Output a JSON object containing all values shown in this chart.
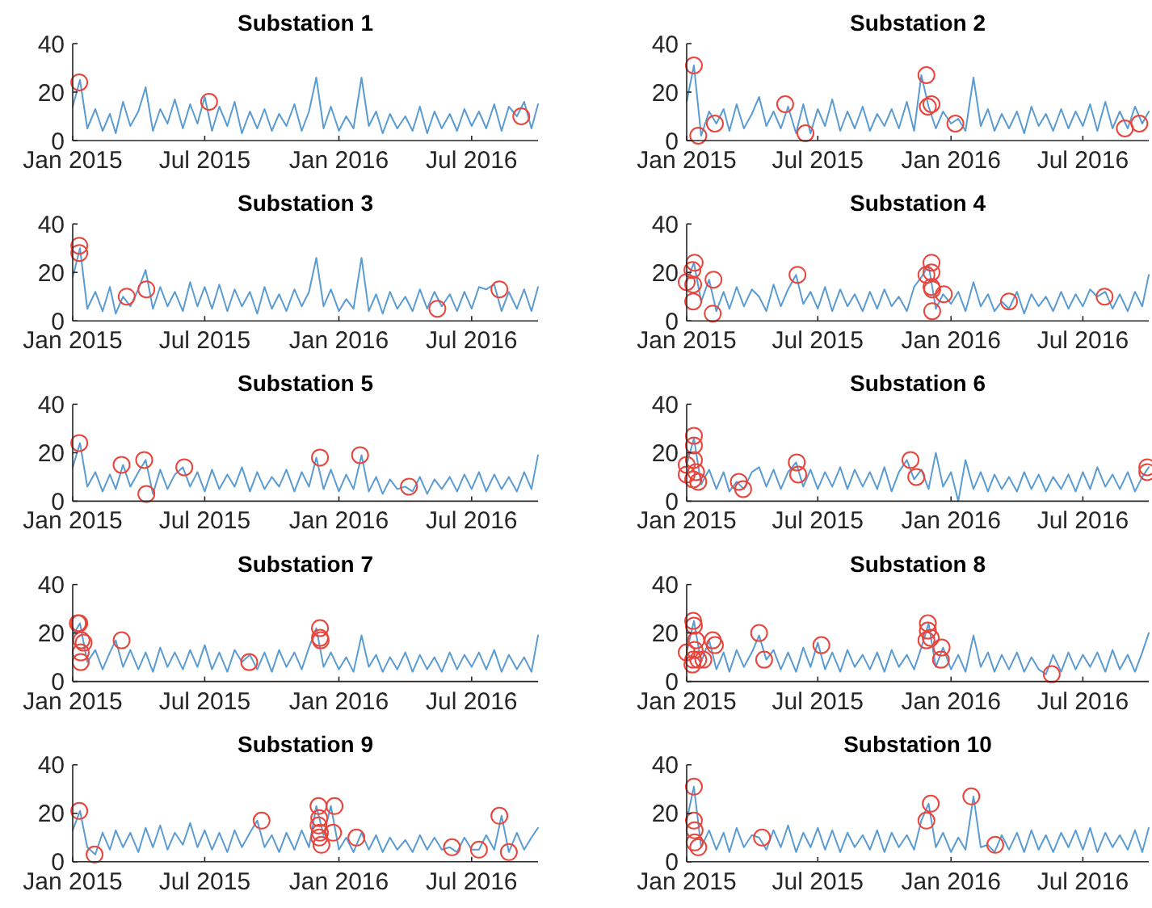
{
  "chart_data": [
    {
      "type": "line",
      "title": "Substation 1",
      "xlim": [
        "2015-01-01",
        "2016-09-30"
      ],
      "xticks": [
        {
          "value": "2015-01-01",
          "label": "Jan 2015"
        },
        {
          "value": "2015-07-01",
          "label": "Jul 2015"
        },
        {
          "value": "2016-01-01",
          "label": "Jan 2016"
        },
        {
          "value": "2016-07-01",
          "label": "Jul 2016"
        }
      ],
      "ylim": [
        0,
        40
      ],
      "yticks": [
        0,
        20,
        40
      ],
      "x": [
        "2015-01-01",
        "2015-01-11",
        "2015-01-21",
        "2015-02-01",
        "2015-02-11",
        "2015-02-21",
        "2015-03-01",
        "2015-03-11",
        "2015-03-21",
        "2015-04-01",
        "2015-04-11",
        "2015-04-21",
        "2015-05-01",
        "2015-05-11",
        "2015-05-21",
        "2015-06-01",
        "2015-06-11",
        "2015-06-21",
        "2015-07-01",
        "2015-07-11",
        "2015-07-21",
        "2015-08-01",
        "2015-08-11",
        "2015-08-21",
        "2015-09-01",
        "2015-09-11",
        "2015-09-21",
        "2015-10-01",
        "2015-10-11",
        "2015-10-21",
        "2015-11-01",
        "2015-11-11",
        "2015-11-21",
        "2015-12-01",
        "2015-12-11",
        "2015-12-21",
        "2016-01-01",
        "2016-01-11",
        "2016-01-21",
        "2016-02-01",
        "2016-02-11",
        "2016-02-21",
        "2016-03-01",
        "2016-03-11",
        "2016-03-21",
        "2016-04-01",
        "2016-04-11",
        "2016-04-21",
        "2016-05-01",
        "2016-05-11",
        "2016-05-21",
        "2016-06-01",
        "2016-06-11",
        "2016-06-21",
        "2016-07-01",
        "2016-07-11",
        "2016-07-21",
        "2016-08-01",
        "2016-08-11",
        "2016-08-21",
        "2016-09-01",
        "2016-09-11",
        "2016-09-21",
        "2016-09-30"
      ],
      "series": [
        {
          "color": "#5a9bd2",
          "values": [
            14,
            25,
            5,
            13,
            4,
            11,
            3,
            16,
            6,
            12,
            22,
            4,
            13,
            7,
            17,
            5,
            15,
            7,
            18,
            4,
            14,
            6,
            16,
            3,
            12,
            5,
            13,
            4,
            11,
            6,
            15,
            4,
            12,
            26,
            5,
            14,
            4,
            10,
            5,
            26,
            6,
            12,
            3,
            11,
            5,
            10,
            4,
            14,
            3,
            12,
            5,
            11,
            4,
            13,
            6,
            12,
            5,
            15,
            4,
            14,
            10,
            16,
            5,
            15
          ]
        },
        {
          "type": "scatter",
          "marker": "circle",
          "color": "#e8453c",
          "x": [
            "2015-01-10",
            "2015-07-07",
            "2016-09-07"
          ],
          "values": [
            24,
            16,
            10
          ]
        }
      ]
    },
    {
      "type": "line",
      "title": "Substation 2",
      "xlim": [
        "2015-01-01",
        "2016-09-30"
      ],
      "xticks": [
        {
          "value": "2015-01-01",
          "label": "Jan 2015"
        },
        {
          "value": "2015-07-01",
          "label": "Jul 2015"
        },
        {
          "value": "2016-01-01",
          "label": "Jan 2016"
        },
        {
          "value": "2016-07-01",
          "label": "Jul 2016"
        }
      ],
      "ylim": [
        0,
        40
      ],
      "yticks": [
        0,
        20,
        40
      ],
      "x": [
        "2015-01-01",
        "2015-01-11",
        "2015-01-21",
        "2015-02-01",
        "2015-02-11",
        "2015-02-21",
        "2015-03-01",
        "2015-03-11",
        "2015-03-21",
        "2015-04-01",
        "2015-04-11",
        "2015-04-21",
        "2015-05-01",
        "2015-05-11",
        "2015-05-21",
        "2015-06-01",
        "2015-06-11",
        "2015-06-21",
        "2015-07-01",
        "2015-07-11",
        "2015-07-21",
        "2015-08-01",
        "2015-08-11",
        "2015-08-21",
        "2015-09-01",
        "2015-09-11",
        "2015-09-21",
        "2015-10-01",
        "2015-10-11",
        "2015-10-21",
        "2015-11-01",
        "2015-11-11",
        "2015-11-21",
        "2015-12-01",
        "2015-12-11",
        "2015-12-21",
        "2016-01-01",
        "2016-01-11",
        "2016-01-21",
        "2016-02-01",
        "2016-02-11",
        "2016-02-21",
        "2016-03-01",
        "2016-03-11",
        "2016-03-21",
        "2016-04-01",
        "2016-04-11",
        "2016-04-21",
        "2016-05-01",
        "2016-05-11",
        "2016-05-21",
        "2016-06-01",
        "2016-06-11",
        "2016-06-21",
        "2016-07-01",
        "2016-07-11",
        "2016-07-21",
        "2016-08-01",
        "2016-08-11",
        "2016-08-21",
        "2016-09-01",
        "2016-09-11",
        "2016-09-21",
        "2016-09-30"
      ],
      "series": [
        {
          "color": "#5a9bd2",
          "values": [
            16,
            31,
            2,
            12,
            7,
            13,
            4,
            15,
            5,
            11,
            18,
            6,
            12,
            5,
            14,
            3,
            15,
            3,
            13,
            6,
            17,
            4,
            12,
            5,
            14,
            4,
            11,
            6,
            13,
            5,
            16,
            4,
            27,
            14,
            5,
            12,
            7,
            9,
            4,
            26,
            6,
            13,
            4,
            11,
            5,
            12,
            3,
            14,
            6,
            11,
            4,
            13,
            5,
            12,
            6,
            15,
            4,
            16,
            5,
            12,
            5,
            14,
            7,
            12
          ]
        },
        {
          "type": "scatter",
          "marker": "circle",
          "color": "#e8453c",
          "x": [
            "2015-01-11",
            "2015-01-17",
            "2015-02-09",
            "2015-05-17",
            "2015-06-14",
            "2015-11-28",
            "2015-11-30",
            "2015-12-05",
            "2016-01-07",
            "2016-08-28",
            "2016-09-17"
          ],
          "values": [
            31,
            2,
            7,
            15,
            3,
            27,
            14,
            15,
            7,
            5,
            7
          ]
        }
      ]
    },
    {
      "type": "line",
      "title": "Substation 3",
      "xlim": [
        "2015-01-01",
        "2016-09-30"
      ],
      "xticks": [
        {
          "value": "2015-01-01",
          "label": "Jan 2015"
        },
        {
          "value": "2015-07-01",
          "label": "Jul 2015"
        },
        {
          "value": "2016-01-01",
          "label": "Jan 2016"
        },
        {
          "value": "2016-07-01",
          "label": "Jul 2016"
        }
      ],
      "ylim": [
        0,
        40
      ],
      "yticks": [
        0,
        20,
        40
      ],
      "x": [
        "2015-01-01",
        "2015-01-11",
        "2015-01-21",
        "2015-02-01",
        "2015-02-11",
        "2015-02-21",
        "2015-03-01",
        "2015-03-11",
        "2015-03-21",
        "2015-04-01",
        "2015-04-11",
        "2015-04-21",
        "2015-05-01",
        "2015-05-11",
        "2015-05-21",
        "2015-06-01",
        "2015-06-11",
        "2015-06-21",
        "2015-07-01",
        "2015-07-11",
        "2015-07-21",
        "2015-08-01",
        "2015-08-11",
        "2015-08-21",
        "2015-09-01",
        "2015-09-11",
        "2015-09-21",
        "2015-10-01",
        "2015-10-11",
        "2015-10-21",
        "2015-11-01",
        "2015-11-11",
        "2015-11-21",
        "2015-12-01",
        "2015-12-11",
        "2015-12-21",
        "2016-01-01",
        "2016-01-11",
        "2016-01-21",
        "2016-02-01",
        "2016-02-11",
        "2016-02-21",
        "2016-03-01",
        "2016-03-11",
        "2016-03-21",
        "2016-04-01",
        "2016-04-11",
        "2016-04-21",
        "2016-05-01",
        "2016-05-11",
        "2016-05-21",
        "2016-06-01",
        "2016-06-11",
        "2016-06-21",
        "2016-07-01",
        "2016-07-11",
        "2016-07-21",
        "2016-08-01",
        "2016-08-11",
        "2016-08-21",
        "2016-09-01",
        "2016-09-11",
        "2016-09-21",
        "2016-09-30"
      ],
      "series": [
        {
          "color": "#5a9bd2",
          "values": [
            18,
            30,
            5,
            12,
            4,
            14,
            3,
            10,
            6,
            13,
            21,
            5,
            14,
            6,
            12,
            4,
            16,
            6,
            14,
            5,
            15,
            4,
            13,
            6,
            12,
            3,
            14,
            5,
            11,
            4,
            13,
            6,
            12,
            26,
            6,
            13,
            4,
            9,
            5,
            26,
            4,
            11,
            3,
            12,
            5,
            10,
            4,
            13,
            5,
            12,
            6,
            11,
            4,
            12,
            5,
            14,
            13,
            15,
            4,
            12,
            5,
            13,
            4,
            14
          ]
        },
        {
          "type": "scatter",
          "marker": "circle",
          "color": "#e8453c",
          "x": [
            "2015-01-10",
            "2015-01-10",
            "2015-03-16",
            "2015-04-12",
            "2016-05-15",
            "2016-08-08"
          ],
          "values": [
            31,
            28,
            10,
            13,
            5,
            13
          ]
        }
      ]
    },
    {
      "type": "line",
      "title": "Substation 4",
      "xlim": [
        "2015-01-01",
        "2016-09-30"
      ],
      "xticks": [
        {
          "value": "2015-01-01",
          "label": "Jan 2015"
        },
        {
          "value": "2015-07-01",
          "label": "Jul 2015"
        },
        {
          "value": "2016-01-01",
          "label": "Jan 2016"
        },
        {
          "value": "2016-07-01",
          "label": "Jul 2016"
        }
      ],
      "ylim": [
        0,
        40
      ],
      "yticks": [
        0,
        20,
        40
      ],
      "x": [
        "2015-01-01",
        "2015-01-11",
        "2015-01-21",
        "2015-02-01",
        "2015-02-11",
        "2015-02-21",
        "2015-03-01",
        "2015-03-11",
        "2015-03-21",
        "2015-04-01",
        "2015-04-11",
        "2015-04-21",
        "2015-05-01",
        "2015-05-11",
        "2015-05-21",
        "2015-06-01",
        "2015-06-11",
        "2015-06-21",
        "2015-07-01",
        "2015-07-11",
        "2015-07-21",
        "2015-08-01",
        "2015-08-11",
        "2015-08-21",
        "2015-09-01",
        "2015-09-11",
        "2015-09-21",
        "2015-10-01",
        "2015-10-11",
        "2015-10-21",
        "2015-11-01",
        "2015-11-11",
        "2015-11-21",
        "2015-12-01",
        "2015-12-11",
        "2015-12-21",
        "2016-01-01",
        "2016-01-11",
        "2016-01-21",
        "2016-02-01",
        "2016-02-11",
        "2016-02-21",
        "2016-03-01",
        "2016-03-11",
        "2016-03-21",
        "2016-04-01",
        "2016-04-11",
        "2016-04-21",
        "2016-05-01",
        "2016-05-11",
        "2016-05-21",
        "2016-06-01",
        "2016-06-11",
        "2016-06-21",
        "2016-07-01",
        "2016-07-11",
        "2016-07-21",
        "2016-08-01",
        "2016-08-11",
        "2016-08-21",
        "2016-09-01",
        "2016-09-11",
        "2016-09-21",
        "2016-09-30"
      ],
      "series": [
        {
          "color": "#5a9bd2",
          "values": [
            16,
            24,
            8,
            17,
            4,
            12,
            5,
            14,
            6,
            13,
            10,
            4,
            15,
            6,
            13,
            19,
            7,
            12,
            5,
            14,
            4,
            13,
            6,
            11,
            4,
            12,
            5,
            13,
            6,
            10,
            4,
            14,
            18,
            23,
            5,
            11,
            7,
            12,
            4,
            16,
            6,
            11,
            4,
            8,
            5,
            12,
            3,
            11,
            6,
            10,
            4,
            12,
            5,
            11,
            6,
            13,
            10,
            12,
            5,
            11,
            4,
            12,
            6,
            19
          ]
        },
        {
          "type": "scatter",
          "marker": "circle",
          "color": "#e8453c",
          "x": [
            "2015-01-12",
            "2015-01-09",
            "2015-01-01",
            "2015-01-10",
            "2015-01-10",
            "2015-02-06",
            "2015-02-07",
            "2015-06-03",
            "2015-11-28",
            "2015-12-05",
            "2015-12-05",
            "2015-12-05",
            "2015-12-06",
            "2015-12-06",
            "2015-12-22",
            "2016-03-21",
            "2016-07-31"
          ],
          "values": [
            24,
            21,
            16,
            15,
            8,
            3,
            17,
            19,
            19,
            24,
            20,
            14,
            13,
            4,
            11,
            8,
            10
          ]
        }
      ]
    },
    {
      "type": "line",
      "title": "Substation 5",
      "xlim": [
        "2015-01-01",
        "2016-09-30"
      ],
      "xticks": [
        {
          "value": "2015-01-01",
          "label": "Jan 2015"
        },
        {
          "value": "2015-07-01",
          "label": "Jul 2015"
        },
        {
          "value": "2016-01-01",
          "label": "Jan 2016"
        },
        {
          "value": "2016-07-01",
          "label": "Jul 2016"
        }
      ],
      "ylim": [
        0,
        40
      ],
      "yticks": [
        0,
        20,
        40
      ],
      "x": [
        "2015-01-01",
        "2015-01-11",
        "2015-01-21",
        "2015-02-01",
        "2015-02-11",
        "2015-02-21",
        "2015-03-01",
        "2015-03-11",
        "2015-03-21",
        "2015-04-01",
        "2015-04-11",
        "2015-04-21",
        "2015-05-01",
        "2015-05-11",
        "2015-05-21",
        "2015-06-01",
        "2015-06-11",
        "2015-06-21",
        "2015-07-01",
        "2015-07-11",
        "2015-07-21",
        "2015-08-01",
        "2015-08-11",
        "2015-08-21",
        "2015-09-01",
        "2015-09-11",
        "2015-09-21",
        "2015-10-01",
        "2015-10-11",
        "2015-10-21",
        "2015-11-01",
        "2015-11-11",
        "2015-11-21",
        "2015-12-01",
        "2015-12-11",
        "2015-12-21",
        "2016-01-01",
        "2016-01-11",
        "2016-01-21",
        "2016-02-01",
        "2016-02-11",
        "2016-02-21",
        "2016-03-01",
        "2016-03-11",
        "2016-03-21",
        "2016-04-01",
        "2016-04-11",
        "2016-04-21",
        "2016-05-01",
        "2016-05-11",
        "2016-05-21",
        "2016-06-01",
        "2016-06-11",
        "2016-06-21",
        "2016-07-01",
        "2016-07-11",
        "2016-07-21",
        "2016-08-01",
        "2016-08-11",
        "2016-08-21",
        "2016-09-01",
        "2016-09-11",
        "2016-09-21",
        "2016-09-30"
      ],
      "series": [
        {
          "color": "#5a9bd2",
          "values": [
            14,
            24,
            6,
            12,
            4,
            11,
            5,
            15,
            6,
            12,
            17,
            3,
            13,
            5,
            11,
            14,
            6,
            12,
            4,
            13,
            5,
            11,
            6,
            14,
            4,
            12,
            5,
            10,
            6,
            13,
            4,
            12,
            6,
            18,
            5,
            13,
            4,
            11,
            5,
            19,
            4,
            10,
            3,
            9,
            5,
            6,
            4,
            10,
            3,
            9,
            5,
            10,
            4,
            11,
            5,
            12,
            4,
            11,
            5,
            10,
            4,
            12,
            5,
            19
          ]
        },
        {
          "type": "scatter",
          "marker": "circle",
          "color": "#e8453c",
          "x": [
            "2015-01-10",
            "2015-03-09",
            "2015-04-09",
            "2015-04-12",
            "2015-06-03",
            "2015-12-06",
            "2016-01-30",
            "2016-04-06"
          ],
          "values": [
            24,
            15,
            17,
            3,
            14,
            18,
            19,
            6
          ]
        }
      ]
    },
    {
      "type": "line",
      "title": "Substation 6",
      "xlim": [
        "2015-01-01",
        "2016-09-30"
      ],
      "xticks": [
        {
          "value": "2015-01-01",
          "label": "Jan 2015"
        },
        {
          "value": "2015-07-01",
          "label": "Jul 2015"
        },
        {
          "value": "2016-01-01",
          "label": "Jan 2016"
        },
        {
          "value": "2016-07-01",
          "label": "Jul 2016"
        }
      ],
      "ylim": [
        0,
        40
      ],
      "yticks": [
        0,
        20,
        40
      ],
      "x": [
        "2015-01-01",
        "2015-01-11",
        "2015-01-21",
        "2015-02-01",
        "2015-02-11",
        "2015-02-21",
        "2015-03-01",
        "2015-03-11",
        "2015-03-21",
        "2015-04-01",
        "2015-04-11",
        "2015-04-21",
        "2015-05-01",
        "2015-05-11",
        "2015-05-21",
        "2015-06-01",
        "2015-06-11",
        "2015-06-21",
        "2015-07-01",
        "2015-07-11",
        "2015-07-21",
        "2015-08-01",
        "2015-08-11",
        "2015-08-21",
        "2015-09-01",
        "2015-09-11",
        "2015-09-21",
        "2015-10-01",
        "2015-10-11",
        "2015-10-21",
        "2015-11-01",
        "2015-11-11",
        "2015-11-21",
        "2015-12-01",
        "2015-12-11",
        "2015-12-21",
        "2016-01-01",
        "2016-01-11",
        "2016-01-21",
        "2016-02-01",
        "2016-02-11",
        "2016-02-21",
        "2016-03-01",
        "2016-03-11",
        "2016-03-21",
        "2016-04-01",
        "2016-04-11",
        "2016-04-21",
        "2016-05-01",
        "2016-05-11",
        "2016-05-21",
        "2016-06-01",
        "2016-06-11",
        "2016-06-21",
        "2016-07-01",
        "2016-07-11",
        "2016-07-21",
        "2016-08-01",
        "2016-08-11",
        "2016-08-21",
        "2016-09-01",
        "2016-09-11",
        "2016-09-21",
        "2016-09-30"
      ],
      "series": [
        {
          "color": "#5a9bd2",
          "values": [
            15,
            26,
            7,
            13,
            5,
            12,
            4,
            8,
            5,
            12,
            14,
            6,
            13,
            5,
            12,
            16,
            6,
            13,
            5,
            12,
            6,
            14,
            5,
            13,
            6,
            12,
            5,
            14,
            4,
            12,
            17,
            9,
            13,
            5,
            20,
            6,
            12,
            0,
            17,
            5,
            12,
            4,
            11,
            5,
            10,
            4,
            12,
            5,
            11,
            4,
            10,
            5,
            11,
            4,
            12,
            5,
            14,
            6,
            11,
            5,
            12,
            4,
            10,
            14
          ]
        },
        {
          "type": "scatter",
          "marker": "circle",
          "color": "#e8453c",
          "x": [
            "2015-01-11",
            "2015-01-11",
            "2015-01-11",
            "2015-01-01",
            "2015-01-01",
            "2015-01-14",
            "2015-01-17",
            "2015-01-10",
            "2015-03-14",
            "2015-03-20",
            "2015-06-02",
            "2015-06-04",
            "2015-11-06",
            "2015-11-14",
            "2016-09-28",
            "2016-09-28"
          ],
          "values": [
            27,
            23,
            17,
            15,
            11,
            12,
            8,
            9,
            8,
            5,
            16,
            11,
            17,
            10,
            14,
            12
          ]
        }
      ]
    },
    {
      "type": "line",
      "title": "Substation 7",
      "xlim": [
        "2015-01-01",
        "2016-09-30"
      ],
      "xticks": [
        {
          "value": "2015-01-01",
          "label": "Jan 2015"
        },
        {
          "value": "2015-07-01",
          "label": "Jul 2015"
        },
        {
          "value": "2016-01-01",
          "label": "Jan 2016"
        },
        {
          "value": "2016-07-01",
          "label": "Jul 2016"
        }
      ],
      "ylim": [
        0,
        40
      ],
      "yticks": [
        0,
        20,
        40
      ],
      "x": [
        "2015-01-01",
        "2015-01-11",
        "2015-01-21",
        "2015-02-01",
        "2015-02-11",
        "2015-02-21",
        "2015-03-01",
        "2015-03-11",
        "2015-03-21",
        "2015-04-01",
        "2015-04-11",
        "2015-04-21",
        "2015-05-01",
        "2015-05-11",
        "2015-05-21",
        "2015-06-01",
        "2015-06-11",
        "2015-06-21",
        "2015-07-01",
        "2015-07-11",
        "2015-07-21",
        "2015-08-01",
        "2015-08-11",
        "2015-08-21",
        "2015-09-01",
        "2015-09-11",
        "2015-09-21",
        "2015-10-01",
        "2015-10-11",
        "2015-10-21",
        "2015-11-01",
        "2015-11-11",
        "2015-11-21",
        "2015-12-01",
        "2015-12-11",
        "2015-12-21",
        "2016-01-01",
        "2016-01-11",
        "2016-01-21",
        "2016-02-01",
        "2016-02-11",
        "2016-02-21",
        "2016-03-01",
        "2016-03-11",
        "2016-03-21",
        "2016-04-01",
        "2016-04-11",
        "2016-04-21",
        "2016-05-01",
        "2016-05-11",
        "2016-05-21",
        "2016-06-01",
        "2016-06-11",
        "2016-06-21",
        "2016-07-01",
        "2016-07-11",
        "2016-07-21",
        "2016-08-01",
        "2016-08-11",
        "2016-08-21",
        "2016-09-01",
        "2016-09-11",
        "2016-09-21",
        "2016-09-30"
      ],
      "series": [
        {
          "color": "#5a9bd2",
          "values": [
            19,
            24,
            8,
            13,
            5,
            12,
            17,
            6,
            13,
            5,
            12,
            4,
            14,
            6,
            12,
            5,
            13,
            6,
            15,
            5,
            12,
            4,
            13,
            8,
            11,
            5,
            12,
            4,
            13,
            6,
            12,
            5,
            14,
            22,
            6,
            12,
            5,
            10,
            4,
            19,
            6,
            11,
            4,
            10,
            5,
            12,
            4,
            11,
            5,
            10,
            4,
            12,
            5,
            11,
            6,
            12,
            5,
            13,
            4,
            11,
            5,
            10,
            4,
            19
          ]
        },
        {
          "type": "scatter",
          "marker": "circle",
          "color": "#e8453c",
          "x": [
            "2015-01-10",
            "2015-01-08",
            "2015-01-13",
            "2015-01-16",
            "2015-01-12",
            "2015-01-12",
            "2015-03-09",
            "2015-08-31",
            "2015-12-06",
            "2015-12-06",
            "2015-12-07"
          ],
          "values": [
            24,
            24,
            17,
            16,
            12,
            8,
            17,
            8,
            22,
            18,
            17
          ]
        }
      ]
    },
    {
      "type": "line",
      "title": "Substation 8",
      "xlim": [
        "2015-01-01",
        "2016-09-30"
      ],
      "xticks": [
        {
          "value": "2015-01-01",
          "label": "Jan 2015"
        },
        {
          "value": "2015-07-01",
          "label": "Jul 2015"
        },
        {
          "value": "2016-01-01",
          "label": "Jan 2016"
        },
        {
          "value": "2016-07-01",
          "label": "Jul 2016"
        }
      ],
      "ylim": [
        0,
        40
      ],
      "yticks": [
        0,
        20,
        40
      ],
      "x": [
        "2015-01-01",
        "2015-01-11",
        "2015-01-21",
        "2015-02-01",
        "2015-02-11",
        "2015-02-21",
        "2015-03-01",
        "2015-03-11",
        "2015-03-21",
        "2015-04-01",
        "2015-04-11",
        "2015-04-21",
        "2015-05-01",
        "2015-05-11",
        "2015-05-21",
        "2015-06-01",
        "2015-06-11",
        "2015-06-21",
        "2015-07-01",
        "2015-07-11",
        "2015-07-21",
        "2015-08-01",
        "2015-08-11",
        "2015-08-21",
        "2015-09-01",
        "2015-09-11",
        "2015-09-21",
        "2015-10-01",
        "2015-10-11",
        "2015-10-21",
        "2015-11-01",
        "2015-11-11",
        "2015-11-21",
        "2015-12-01",
        "2015-12-11",
        "2015-12-21",
        "2016-01-01",
        "2016-01-11",
        "2016-01-21",
        "2016-02-01",
        "2016-02-11",
        "2016-02-21",
        "2016-03-01",
        "2016-03-11",
        "2016-03-21",
        "2016-04-01",
        "2016-04-11",
        "2016-04-21",
        "2016-05-01",
        "2016-05-11",
        "2016-05-21",
        "2016-06-01",
        "2016-06-11",
        "2016-06-21",
        "2016-07-01",
        "2016-07-11",
        "2016-07-21",
        "2016-08-01",
        "2016-08-11",
        "2016-08-21",
        "2016-09-01",
        "2016-09-11",
        "2016-09-21",
        "2016-09-30"
      ],
      "series": [
        {
          "color": "#5a9bd2",
          "values": [
            12,
            25,
            8,
            17,
            5,
            12,
            4,
            13,
            6,
            12,
            19,
            9,
            13,
            5,
            12,
            4,
            14,
            6,
            16,
            5,
            12,
            4,
            13,
            6,
            11,
            5,
            12,
            4,
            13,
            6,
            11,
            5,
            14,
            24,
            6,
            14,
            5,
            11,
            4,
            19,
            6,
            12,
            4,
            11,
            5,
            12,
            4,
            10,
            5,
            3,
            11,
            4,
            12,
            5,
            11,
            6,
            12,
            4,
            13,
            5,
            11,
            4,
            12,
            20
          ]
        },
        {
          "type": "scatter",
          "marker": "circle",
          "color": "#e8453c",
          "x": [
            "2015-01-10",
            "2015-01-11",
            "2015-01-01",
            "2015-01-14",
            "2015-01-12",
            "2015-01-10",
            "2015-01-09",
            "2015-01-17",
            "2015-02-06",
            "2015-02-09",
            "2015-01-24",
            "2015-04-11",
            "2015-04-18",
            "2015-07-06",
            "2015-11-30",
            "2015-11-30",
            "2015-11-28",
            "2015-12-04",
            "2015-12-19",
            "2015-12-18",
            "2016-05-19"
          ],
          "values": [
            25,
            23,
            12,
            17,
            13,
            9,
            7,
            9,
            17,
            15,
            9,
            20,
            9,
            15,
            24,
            21,
            17,
            18,
            14,
            9,
            3
          ]
        }
      ]
    },
    {
      "type": "line",
      "title": "Substation 9",
      "xlim": [
        "2015-01-01",
        "2016-09-30"
      ],
      "xticks": [
        {
          "value": "2015-01-01",
          "label": "Jan 2015"
        },
        {
          "value": "2015-07-01",
          "label": "Jul 2015"
        },
        {
          "value": "2016-01-01",
          "label": "Jan 2016"
        },
        {
          "value": "2016-07-01",
          "label": "Jul 2016"
        }
      ],
      "ylim": [
        0,
        40
      ],
      "yticks": [
        0,
        20,
        40
      ],
      "x": [
        "2015-01-01",
        "2015-01-11",
        "2015-01-21",
        "2015-02-01",
        "2015-02-11",
        "2015-02-21",
        "2015-03-01",
        "2015-03-11",
        "2015-03-21",
        "2015-04-01",
        "2015-04-11",
        "2015-04-21",
        "2015-05-01",
        "2015-05-11",
        "2015-05-21",
        "2015-06-01",
        "2015-06-11",
        "2015-06-21",
        "2015-07-01",
        "2015-07-11",
        "2015-07-21",
        "2015-08-01",
        "2015-08-11",
        "2015-08-21",
        "2015-09-01",
        "2015-09-11",
        "2015-09-21",
        "2015-10-01",
        "2015-10-11",
        "2015-10-21",
        "2015-11-01",
        "2015-11-11",
        "2015-11-21",
        "2015-12-01",
        "2015-12-11",
        "2015-12-21",
        "2016-01-01",
        "2016-01-11",
        "2016-01-21",
        "2016-02-01",
        "2016-02-11",
        "2016-02-21",
        "2016-03-01",
        "2016-03-11",
        "2016-03-21",
        "2016-04-01",
        "2016-04-11",
        "2016-04-21",
        "2016-05-01",
        "2016-05-11",
        "2016-05-21",
        "2016-06-01",
        "2016-06-11",
        "2016-06-21",
        "2016-07-01",
        "2016-07-11",
        "2016-07-21",
        "2016-08-01",
        "2016-08-11",
        "2016-08-21",
        "2016-09-01",
        "2016-09-11",
        "2016-09-21",
        "2016-09-30"
      ],
      "series": [
        {
          "color": "#5a9bd2",
          "values": [
            13,
            21,
            6,
            3,
            12,
            5,
            13,
            6,
            12,
            4,
            14,
            6,
            15,
            5,
            12,
            7,
            16,
            6,
            13,
            5,
            12,
            4,
            13,
            6,
            12,
            17,
            6,
            11,
            4,
            12,
            5,
            13,
            6,
            23,
            11,
            23,
            5,
            10,
            4,
            12,
            5,
            11,
            4,
            10,
            5,
            9,
            4,
            11,
            5,
            10,
            5,
            6,
            4,
            10,
            5,
            5,
            11,
            5,
            19,
            4,
            12,
            5,
            10,
            14
          ]
        },
        {
          "type": "scatter",
          "marker": "circle",
          "color": "#e8453c",
          "x": [
            "2015-01-10",
            "2015-01-31",
            "2015-09-17",
            "2015-12-04",
            "2015-12-05",
            "2015-12-04",
            "2015-12-06",
            "2015-12-05",
            "2015-12-08",
            "2015-12-24",
            "2015-12-26",
            "2016-01-25",
            "2016-06-04",
            "2016-07-11",
            "2016-08-08",
            "2016-08-21"
          ],
          "values": [
            21,
            3,
            17,
            23,
            18,
            15,
            12,
            10,
            7,
            12,
            23,
            10,
            6,
            5,
            19,
            4
          ]
        }
      ]
    },
    {
      "type": "line",
      "title": "Substation 10",
      "xlim": [
        "2015-01-01",
        "2016-09-30"
      ],
      "xticks": [
        {
          "value": "2015-01-01",
          "label": "Jan 2015"
        },
        {
          "value": "2015-07-01",
          "label": "Jul 2015"
        },
        {
          "value": "2016-01-01",
          "label": "Jan 2016"
        },
        {
          "value": "2016-07-01",
          "label": "Jul 2016"
        }
      ],
      "ylim": [
        0,
        40
      ],
      "yticks": [
        0,
        20,
        40
      ],
      "x": [
        "2015-01-01",
        "2015-01-11",
        "2015-01-21",
        "2015-02-01",
        "2015-02-11",
        "2015-02-21",
        "2015-03-01",
        "2015-03-11",
        "2015-03-21",
        "2015-04-01",
        "2015-04-11",
        "2015-04-21",
        "2015-05-01",
        "2015-05-11",
        "2015-05-21",
        "2015-06-01",
        "2015-06-11",
        "2015-06-21",
        "2015-07-01",
        "2015-07-11",
        "2015-07-21",
        "2015-08-01",
        "2015-08-11",
        "2015-08-21",
        "2015-09-01",
        "2015-09-11",
        "2015-09-21",
        "2015-10-01",
        "2015-10-11",
        "2015-10-21",
        "2015-11-01",
        "2015-11-11",
        "2015-11-21",
        "2015-12-01",
        "2015-12-11",
        "2015-12-21",
        "2016-01-01",
        "2016-01-11",
        "2016-01-21",
        "2016-02-01",
        "2016-02-11",
        "2016-02-21",
        "2016-03-01",
        "2016-03-11",
        "2016-03-21",
        "2016-04-01",
        "2016-04-11",
        "2016-04-21",
        "2016-05-01",
        "2016-05-11",
        "2016-05-21",
        "2016-06-01",
        "2016-06-11",
        "2016-06-21",
        "2016-07-01",
        "2016-07-11",
        "2016-07-21",
        "2016-08-01",
        "2016-08-11",
        "2016-08-21",
        "2016-09-01",
        "2016-09-11",
        "2016-09-21",
        "2016-09-30"
      ],
      "series": [
        {
          "color": "#5a9bd2",
          "values": [
            17,
            31,
            6,
            13,
            5,
            12,
            4,
            14,
            6,
            11,
            10,
            5,
            13,
            6,
            15,
            4,
            12,
            6,
            14,
            5,
            13,
            4,
            12,
            6,
            11,
            5,
            13,
            4,
            12,
            6,
            11,
            5,
            17,
            24,
            6,
            12,
            4,
            10,
            5,
            27,
            6,
            7,
            4,
            11,
            5,
            12,
            4,
            13,
            5,
            11,
            4,
            12,
            6,
            13,
            5,
            14,
            4,
            12,
            6,
            11,
            5,
            13,
            4,
            14
          ]
        },
        {
          "type": "scatter",
          "marker": "circle",
          "color": "#e8453c",
          "x": [
            "2015-01-11",
            "2015-01-11",
            "2015-01-12",
            "2015-01-12",
            "2015-01-17",
            "2015-04-15",
            "2015-11-28",
            "2015-12-04",
            "2016-01-29",
            "2016-03-02"
          ],
          "values": [
            31,
            17,
            13,
            8,
            6,
            10,
            17,
            24,
            27,
            7
          ]
        }
      ]
    }
  ]
}
